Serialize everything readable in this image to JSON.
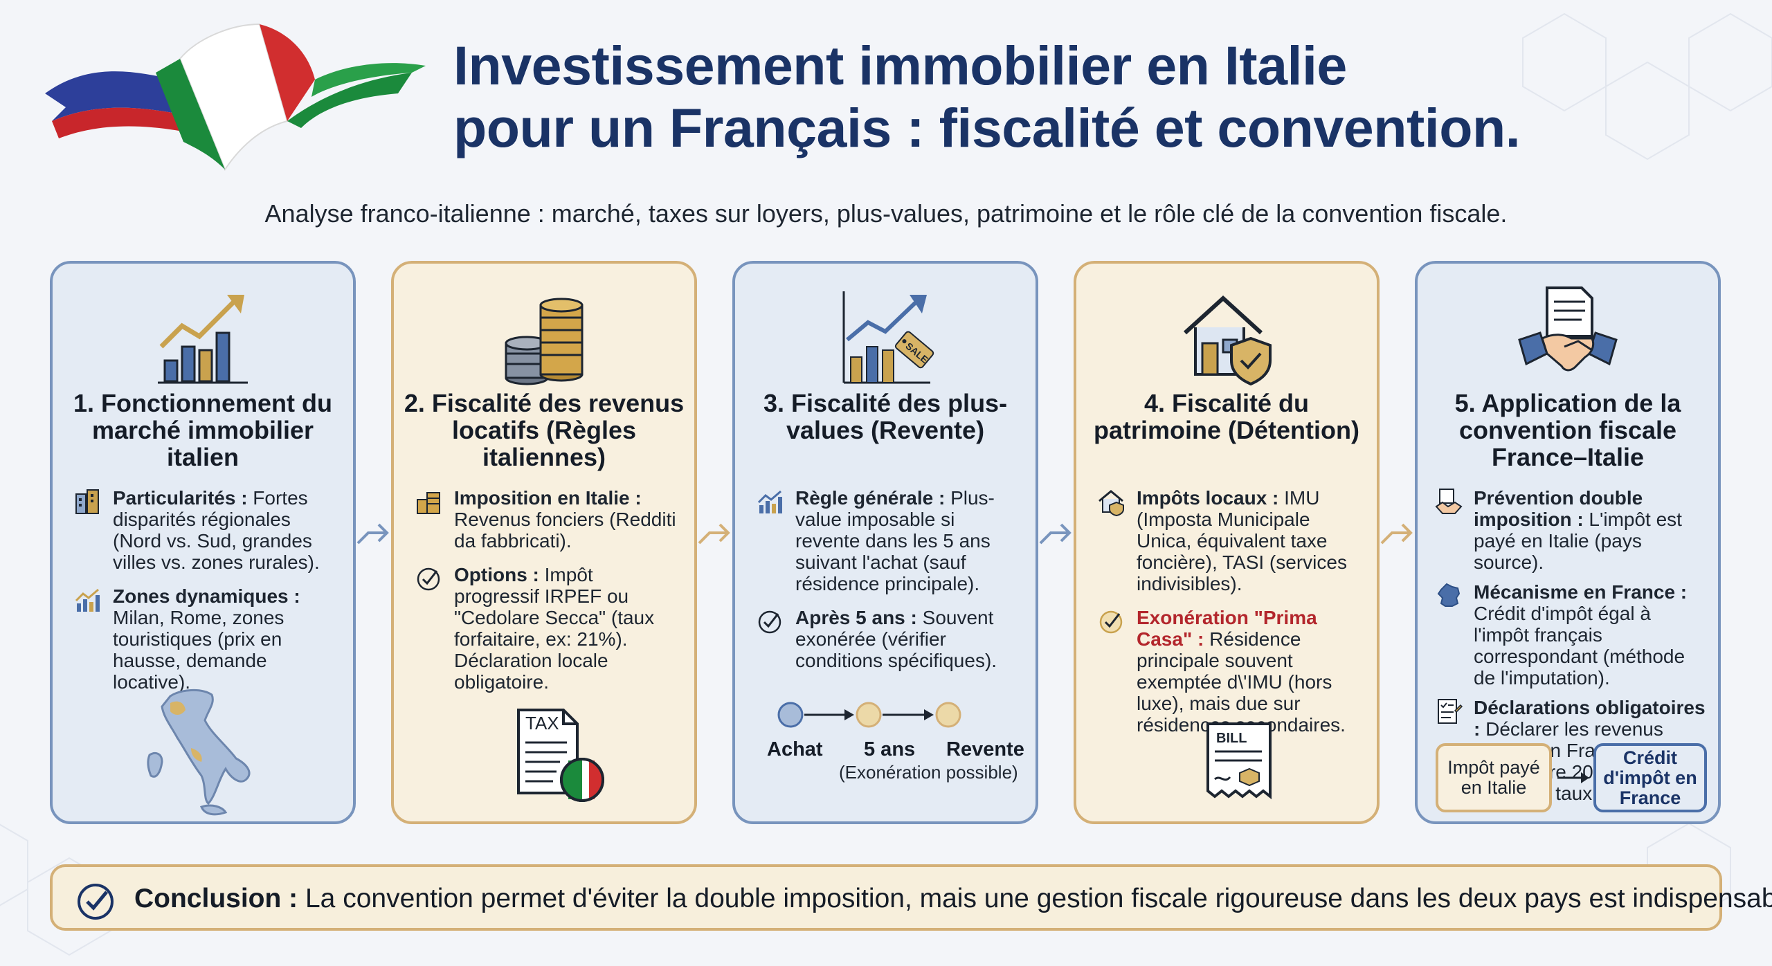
{
  "header": {
    "title_line1": "Investissement immobilier en Italie",
    "title_line2": "pour un Français : fiscalité et convention.",
    "subtitle": "Analyse franco-italienne : marché, taxes sur loyers, plus-values, patrimoine et le rôle clé de la convention fiscale."
  },
  "cards": [
    {
      "title": "1. Fonctionnement du marché immobilier italien",
      "items": [
        {
          "icon": "buildings-icon",
          "bold": "Particularités :",
          "text": " Fortes disparités régionales (Nord vs. Sud, grandes villes vs. zones rurales)."
        },
        {
          "icon": "chart-up-icon",
          "bold": "Zones dynamiques :",
          "text": " Milan, Rome, zones touristiques (prix en hausse, demande locative)."
        }
      ],
      "illustration": "italy-map-icon"
    },
    {
      "title": "2. Fiscalité des revenus locatifs (Règles italiennes)",
      "items": [
        {
          "icon": "coins-icon",
          "bold": "Imposition en Italie :",
          "text": " Revenus fonciers (Redditi da fabbricati)."
        },
        {
          "icon": "check-circle-icon",
          "bold": "Options :",
          "text": " Impôt progressif IRPEF ou \"Cedolare Secca\" (taux forfaitaire, ex: 21%). Déclaration locale obligatoire."
        }
      ],
      "illustration_label": "TAX"
    },
    {
      "title": "3. Fiscalité des plus-values (Revente)",
      "items": [
        {
          "icon": "chart-up-icon",
          "bold": "Règle générale :",
          "text": " Plus-value imposable si revente dans les 5 ans suivant l'achat (sauf résidence principale)."
        },
        {
          "icon": "check-circle-icon",
          "bold": "Après 5 ans :",
          "text": " Souvent exonérée (vérifier conditions spécifiques)."
        }
      ],
      "sale_tag": "SALE",
      "timeline": {
        "step1": "Achat",
        "step2": "5 ans",
        "step3": "Revente",
        "note": "(Exonération possible)"
      }
    },
    {
      "title": "4. Fiscalité du patrimoine (Détention)",
      "items": [
        {
          "icon": "house-icon",
          "bold": "Impôts locaux :",
          "text": " IMU (Imposta Municipale Unica, équivalent taxe foncière), TASI (services indivisibles)."
        },
        {
          "icon": "check-circle-icon",
          "red": "Exonération \"Prima Casa\" :",
          "text": " Résidence principale souvent exemptée d\\'IMU (hors luxe), mais due sur résidences secondaires."
        }
      ],
      "illustration_label": "BILL"
    },
    {
      "title": "5. Application de la convention fiscale France–Italie",
      "items": [
        {
          "icon": "handshake-icon",
          "bold": "Prévention double imposition :",
          "text": " L'impôt est payé en Italie (pays source)."
        },
        {
          "icon": "france-map-icon",
          "bold": "Mécanisme en France :",
          "text": " Crédit d'impôt égal à l'impôt français correspondant (méthode de l'imputation)."
        },
        {
          "icon": "checklist-icon",
          "bold": "Déclarations obligatoires :",
          "text": " Déclarer les revenus italiens en France (formulaire 2047) pour le calcul du taux effectif."
        }
      ],
      "flow": {
        "from": "Impôt payé en Italie",
        "to": "Crédit d'impôt en France"
      }
    }
  ],
  "conclusion": {
    "bold": "Conclusion :",
    "text": " La convention permet d'éviter la double imposition, mais une gestion fiscale rigoureuse dans les deux pays est indispensable."
  },
  "colors": {
    "navy": "#1a3366",
    "blue_card": "#e4ebf4",
    "beige_card": "#f8f0df",
    "blue_border": "#7894bd",
    "gold_border": "#d4b077",
    "red": "#b3262c"
  }
}
